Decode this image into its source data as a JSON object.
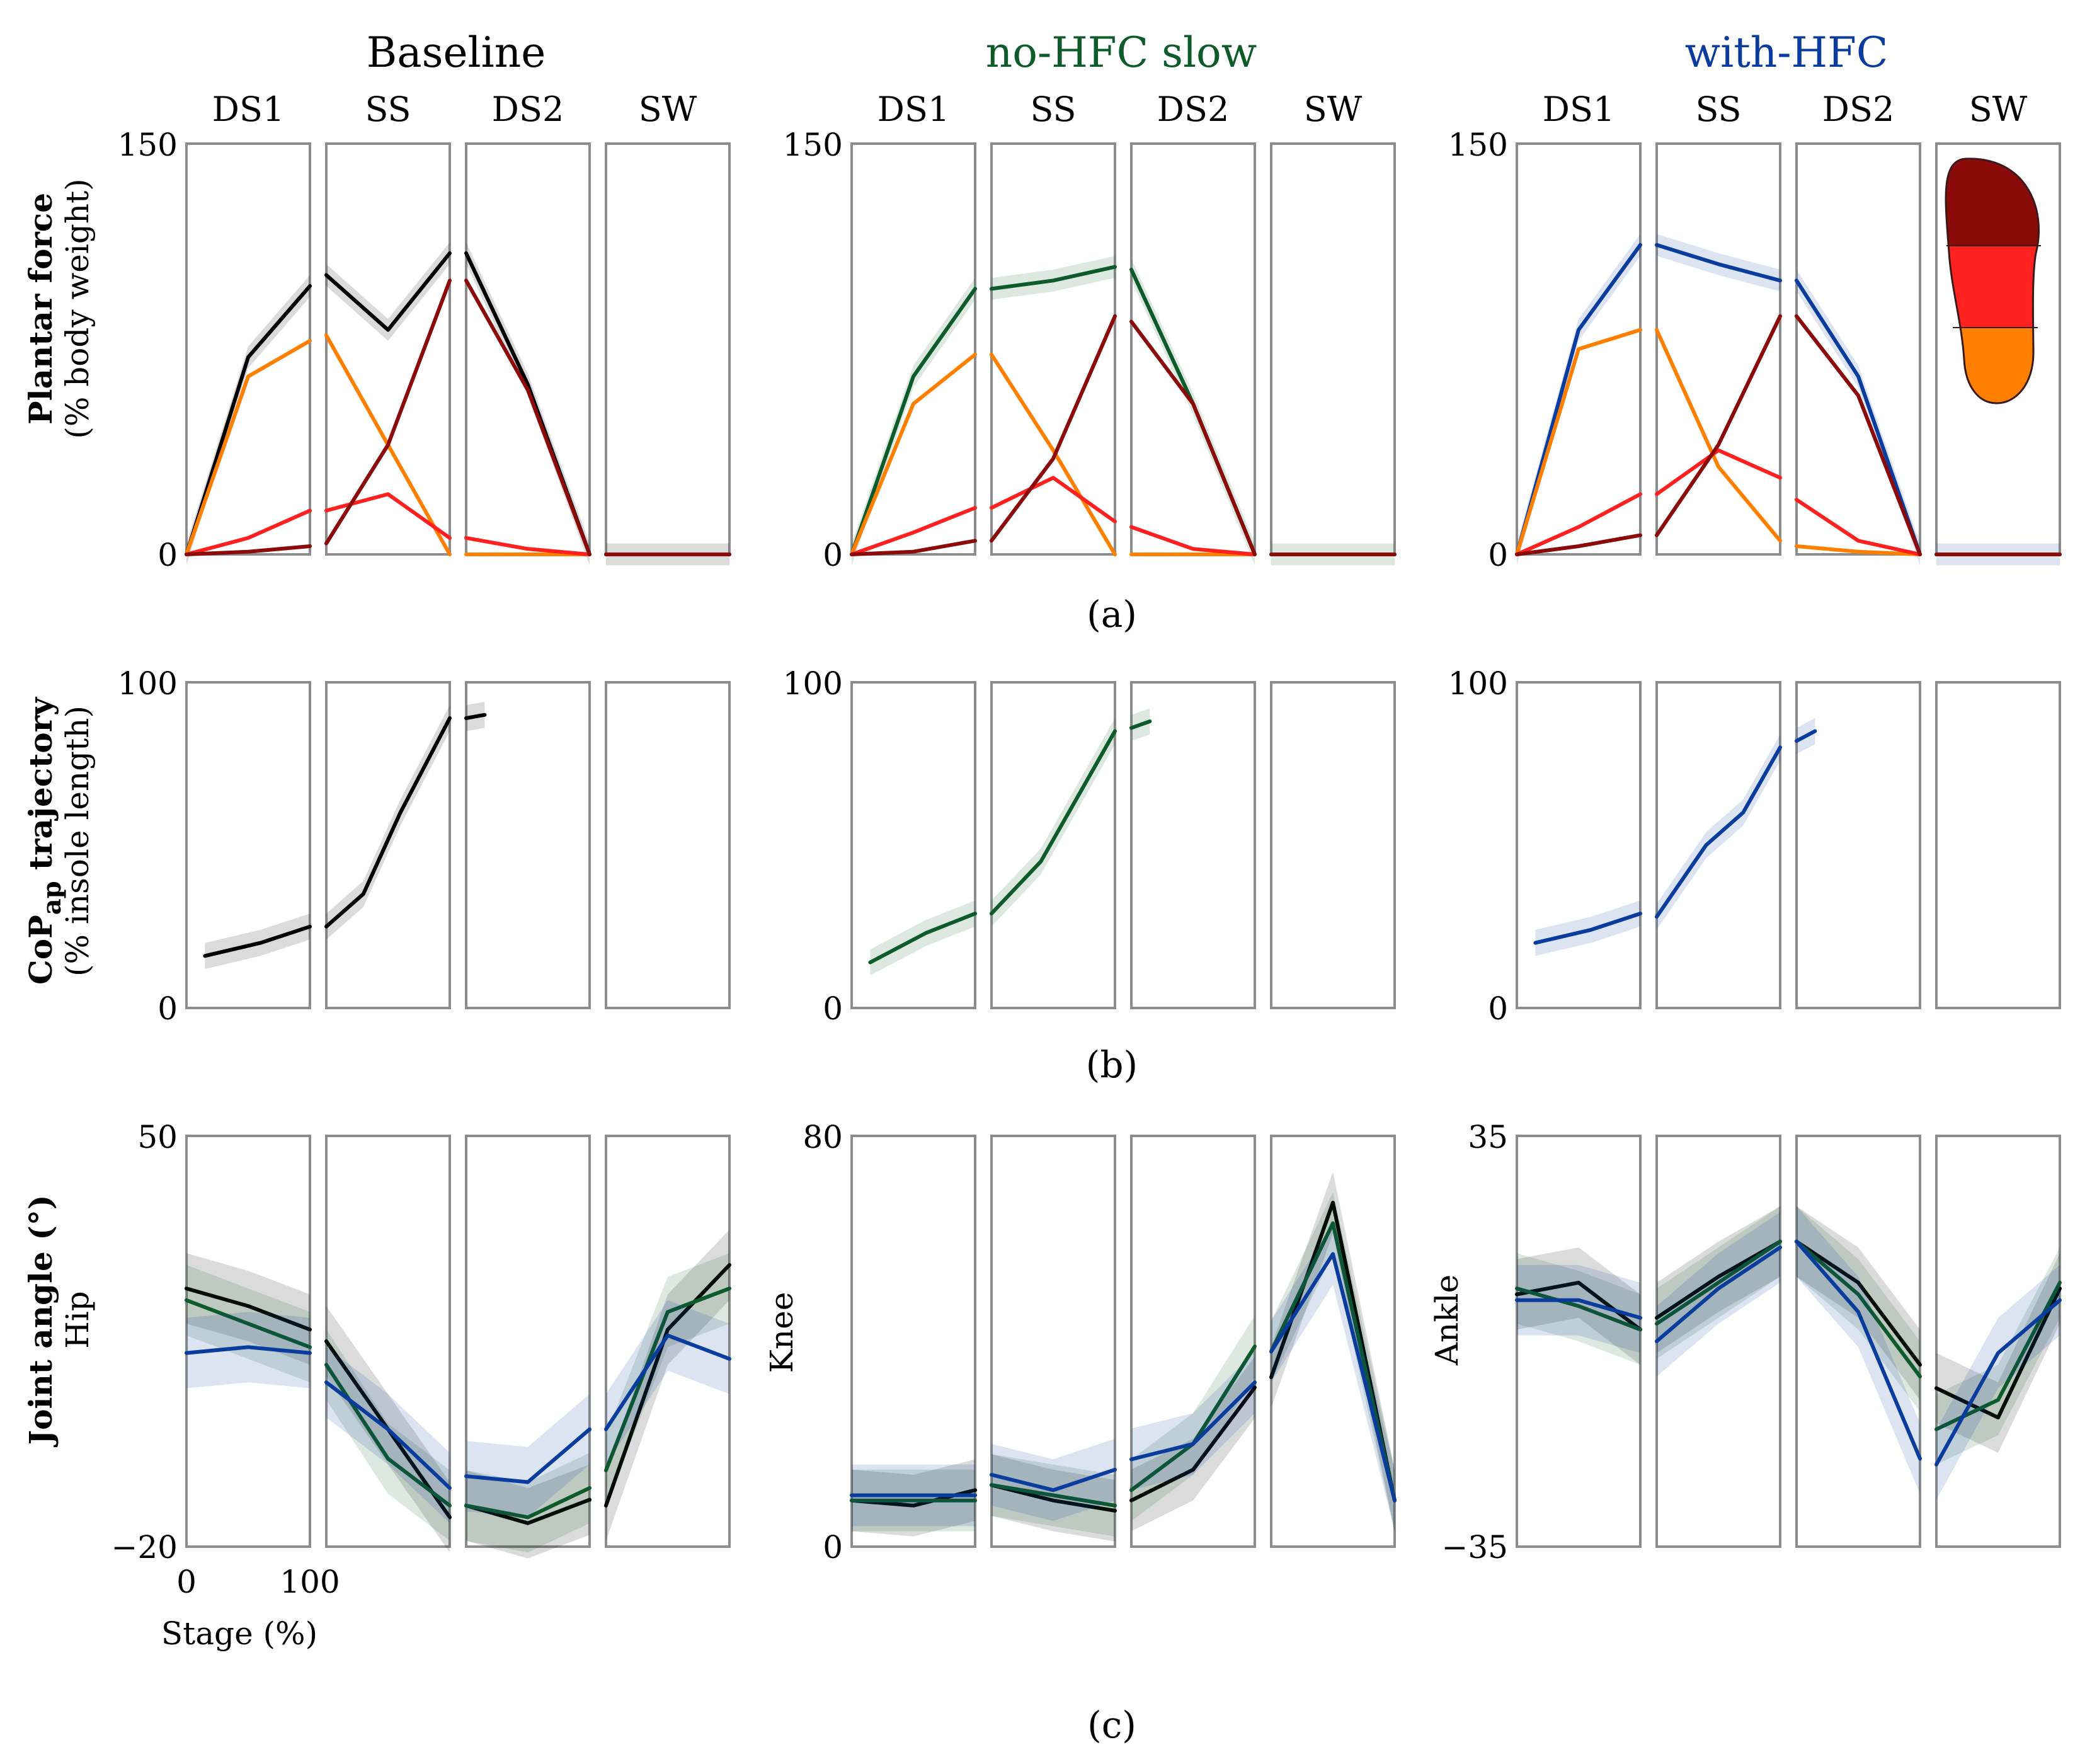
{
  "columns": [
    {
      "title": "Baseline",
      "color": "#000000"
    },
    {
      "title": "no-HFC slow",
      "color": "#0d5a2a"
    },
    {
      "title": "with-HFC",
      "color": "#0a3c9e"
    }
  ],
  "stages": [
    "DS1",
    "SS",
    "DS2",
    "SW"
  ],
  "captions": {
    "a": "(a)",
    "b": "(b)",
    "c": "(c)"
  },
  "row_a": {
    "ylabel_bold": "Plantar force",
    "ylabel": "(% body weight)",
    "ymin_label": "0",
    "ymax_label": "150"
  },
  "row_b": {
    "ylabel_bold_main": "CoP",
    "ylabel_bold_sub": "ap",
    "ylabel_bold_rest": " trajectory",
    "ylabel": "(% insole length)",
    "ymin_label": "0",
    "ymax_label": "100"
  },
  "row_c": {
    "ylabel_bold": "Joint angle (°)",
    "hip": {
      "label": "Hip",
      "ymin_label": "−20",
      "ymax_label": "50"
    },
    "knee": {
      "label": "Knee",
      "ymin_label": "0",
      "ymax_label": "80"
    },
    "ankle": {
      "label": "Ankle",
      "ymin_label": "−35",
      "ymax_label": "35"
    }
  },
  "x_axis": {
    "tick0": "0",
    "tick100": "100",
    "label": "Stage (%)"
  },
  "insole_colors": {
    "heel": "#ff8000",
    "midfoot": "#ff2020",
    "forefoot": "#8b0a0a"
  },
  "chart_data": [
    {
      "type": "line",
      "title": "Baseline",
      "ylabel": "Plantar force (% body weight)",
      "ylim": [
        0,
        150
      ],
      "stages": [
        "DS1",
        "SS",
        "DS2",
        "SW"
      ],
      "x": [
        0,
        50,
        100
      ],
      "x_unit": "% of stage",
      "series": [
        {
          "color": "#000000",
          "values": {
            "DS1": [
              0,
              72,
              98
            ],
            "SS": [
              102,
              82,
              110
            ],
            "DS2": [
              110,
              62,
              0
            ],
            "SW": [
              0,
              0,
              0
            ]
          }
        },
        {
          "color": "#ff8000",
          "values": {
            "DS1": [
              0,
              65,
              78
            ],
            "SS": [
              80,
              40,
              0
            ],
            "DS2": [
              0,
              0,
              0
            ],
            "SW": [
              0,
              0,
              0
            ]
          }
        },
        {
          "color": "#ff2020",
          "values": {
            "DS1": [
              0,
              6,
              16
            ],
            "SS": [
              16,
              22,
              6
            ],
            "DS2": [
              6,
              2,
              0
            ],
            "SW": [
              0,
              0,
              0
            ]
          }
        },
        {
          "color": "#8b0a0a",
          "values": {
            "DS1": [
              0,
              1,
              3
            ],
            "SS": [
              4,
              40,
              100
            ],
            "DS2": [
              100,
              60,
              0
            ],
            "SW": [
              0,
              0,
              0
            ]
          }
        }
      ]
    },
    {
      "type": "line",
      "title": "no-HFC slow",
      "ylabel": "Plantar force (% body weight)",
      "ylim": [
        0,
        150
      ],
      "stages": [
        "DS1",
        "SS",
        "DS2",
        "SW"
      ],
      "x": [
        0,
        50,
        100
      ],
      "x_unit": "% of stage",
      "series": [
        {
          "color": "#0d5a2a",
          "values": {
            "DS1": [
              0,
              65,
              97
            ],
            "SS": [
              97,
              100,
              105
            ],
            "DS2": [
              104,
              55,
              0
            ],
            "SW": [
              0,
              0,
              0
            ]
          }
        },
        {
          "color": "#ff8000",
          "values": {
            "DS1": [
              0,
              55,
              73
            ],
            "SS": [
              73,
              38,
              0
            ],
            "DS2": [
              0,
              0,
              0
            ],
            "SW": [
              0,
              0,
              0
            ]
          }
        },
        {
          "color": "#ff2020",
          "values": {
            "DS1": [
              0,
              8,
              17
            ],
            "SS": [
              17,
              28,
              12
            ],
            "DS2": [
              10,
              2,
              0
            ],
            "SW": [
              0,
              0,
              0
            ]
          }
        },
        {
          "color": "#8b0a0a",
          "values": {
            "DS1": [
              0,
              1,
              5
            ],
            "SS": [
              5,
              35,
              87
            ],
            "DS2": [
              85,
              55,
              0
            ],
            "SW": [
              0,
              0,
              0
            ]
          }
        }
      ]
    },
    {
      "type": "line",
      "title": "with-HFC",
      "ylabel": "Plantar force (% body weight)",
      "ylim": [
        0,
        150
      ],
      "stages": [
        "DS1",
        "SS",
        "DS2",
        "SW"
      ],
      "x": [
        0,
        50,
        100
      ],
      "x_unit": "% of stage",
      "series": [
        {
          "color": "#0a3c9e",
          "values": {
            "DS1": [
              0,
              82,
              113
            ],
            "SS": [
              113,
              106,
              100
            ],
            "DS2": [
              100,
              65,
              0
            ],
            "SW": [
              0,
              0,
              0
            ]
          }
        },
        {
          "color": "#ff8000",
          "values": {
            "DS1": [
              0,
              75,
              82
            ],
            "SS": [
              82,
              32,
              5
            ],
            "DS2": [
              3,
              1,
              0
            ],
            "SW": [
              0,
              0,
              0
            ]
          }
        },
        {
          "color": "#ff2020",
          "values": {
            "DS1": [
              0,
              10,
              22
            ],
            "SS": [
              22,
              38,
              28
            ],
            "DS2": [
              20,
              5,
              0
            ],
            "SW": [
              0,
              0,
              0
            ]
          }
        },
        {
          "color": "#8b0a0a",
          "values": {
            "DS1": [
              0,
              3,
              7
            ],
            "SS": [
              7,
              40,
              87
            ],
            "DS2": [
              87,
              58,
              0
            ],
            "SW": [
              0,
              0,
              0
            ]
          }
        }
      ]
    },
    {
      "type": "line",
      "title": "Baseline",
      "ylabel": "CoPap trajectory (% insole length)",
      "ylim": [
        0,
        100
      ],
      "stages": [
        "DS1",
        "SS",
        "DS2",
        "SW"
      ],
      "series": [
        {
          "color": "#000000",
          "points": [
            [
              "DS1",
              15,
              16
            ],
            [
              "DS1",
              60,
              20
            ],
            [
              "DS1",
              100,
              25
            ],
            [
              "SS",
              0,
              25
            ],
            [
              "SS",
              30,
              35
            ],
            [
              "SS",
              60,
              60
            ],
            [
              "SS",
              100,
              89
            ],
            [
              "DS2",
              0,
              89
            ],
            [
              "DS2",
              15,
              90
            ]
          ]
        }
      ]
    },
    {
      "type": "line",
      "title": "no-HFC slow",
      "ylabel": "CoPap trajectory (% insole length)",
      "ylim": [
        0,
        100
      ],
      "stages": [
        "DS1",
        "SS",
        "DS2",
        "SW"
      ],
      "series": [
        {
          "color": "#0d5a2a",
          "points": [
            [
              "DS1",
              15,
              14
            ],
            [
              "DS1",
              60,
              23
            ],
            [
              "DS1",
              100,
              29
            ],
            [
              "SS",
              0,
              29
            ],
            [
              "SS",
              40,
              45
            ],
            [
              "SS",
              70,
              65
            ],
            [
              "SS",
              100,
              85
            ],
            [
              "DS2",
              0,
              86
            ],
            [
              "DS2",
              15,
              88
            ]
          ]
        }
      ]
    },
    {
      "type": "line",
      "title": "with-HFC",
      "ylabel": "CoPap trajectory (% insole length)",
      "ylim": [
        0,
        100
      ],
      "stages": [
        "DS1",
        "SS",
        "DS2",
        "SW"
      ],
      "series": [
        {
          "color": "#0a3c9e",
          "points": [
            [
              "DS1",
              15,
              20
            ],
            [
              "DS1",
              60,
              24
            ],
            [
              "DS1",
              100,
              29
            ],
            [
              "SS",
              0,
              28
            ],
            [
              "SS",
              40,
              50
            ],
            [
              "SS",
              70,
              60
            ],
            [
              "SS",
              100,
              80
            ],
            [
              "DS2",
              0,
              82
            ],
            [
              "DS2",
              15,
              85
            ]
          ]
        }
      ]
    },
    {
      "type": "line",
      "title": "",
      "ylabel": "Hip",
      "ylim": [
        -20,
        50
      ],
      "stages": [
        "DS1",
        "SS",
        "DS2",
        "SW"
      ],
      "series": [
        {
          "color": "#000000",
          "values": {
            "DS1": [
              24,
              21,
              17
            ],
            "SS": [
              15,
              0,
              -15
            ],
            "DS2": [
              -13,
              -16,
              -12
            ],
            "SW": [
              -13,
              17,
              28
            ]
          }
        },
        {
          "color": "#0d5a2a",
          "values": {
            "DS1": [
              22,
              18,
              14
            ],
            "SS": [
              11,
              -5,
              -13
            ],
            "DS2": [
              -13,
              -15,
              -10
            ],
            "SW": [
              -7,
              20,
              24
            ]
          }
        },
        {
          "color": "#0a3c9e",
          "values": {
            "DS1": [
              13,
              14,
              13
            ],
            "SS": [
              8,
              0,
              -10
            ],
            "DS2": [
              -8,
              -9,
              0
            ],
            "SW": [
              0,
              16,
              12
            ]
          }
        }
      ]
    },
    {
      "type": "line",
      "title": "",
      "ylabel": "Knee",
      "ylim": [
        0,
        80
      ],
      "stages": [
        "DS1",
        "SS",
        "DS2",
        "SW"
      ],
      "series": [
        {
          "color": "#000000",
          "values": {
            "DS1": [
              9,
              8,
              11
            ],
            "SS": [
              12,
              9,
              7
            ],
            "DS2": [
              9,
              15,
              31
            ],
            "SW": [
              33,
              67,
              9
            ]
          }
        },
        {
          "color": "#0d5a2a",
          "values": {
            "DS1": [
              9,
              9,
              9
            ],
            "SS": [
              12,
              10,
              8
            ],
            "DS2": [
              11,
              20,
              39
            ],
            "SW": [
              38,
              63,
              9
            ]
          }
        },
        {
          "color": "#0a3c9e",
          "values": {
            "DS1": [
              10,
              10,
              10
            ],
            "SS": [
              14,
              11,
              15
            ],
            "DS2": [
              17,
              20,
              32
            ],
            "SW": [
              38,
              57,
              9
            ]
          }
        }
      ]
    },
    {
      "type": "line",
      "title": "",
      "ylabel": "Ankle",
      "ylim": [
        -35,
        35
      ],
      "stages": [
        "DS1",
        "SS",
        "DS2",
        "SW"
      ],
      "series": [
        {
          "color": "#000000",
          "values": {
            "DS1": [
              8,
              10,
              2
            ],
            "SS": [
              4,
              11,
              17
            ],
            "DS2": [
              17,
              10,
              -4
            ],
            "SW": [
              -8,
              -13,
              9
            ]
          }
        },
        {
          "color": "#0d5a2a",
          "values": {
            "DS1": [
              9,
              6,
              2
            ],
            "SS": [
              3,
              10,
              17
            ],
            "DS2": [
              17,
              8,
              -6
            ],
            "SW": [
              -15,
              -10,
              10
            ]
          }
        },
        {
          "color": "#0a3c9e",
          "values": {
            "DS1": [
              7,
              7,
              4
            ],
            "SS": [
              0,
              9,
              16
            ],
            "DS2": [
              17,
              5,
              -20
            ],
            "SW": [
              -21,
              -2,
              7
            ]
          }
        }
      ]
    }
  ]
}
